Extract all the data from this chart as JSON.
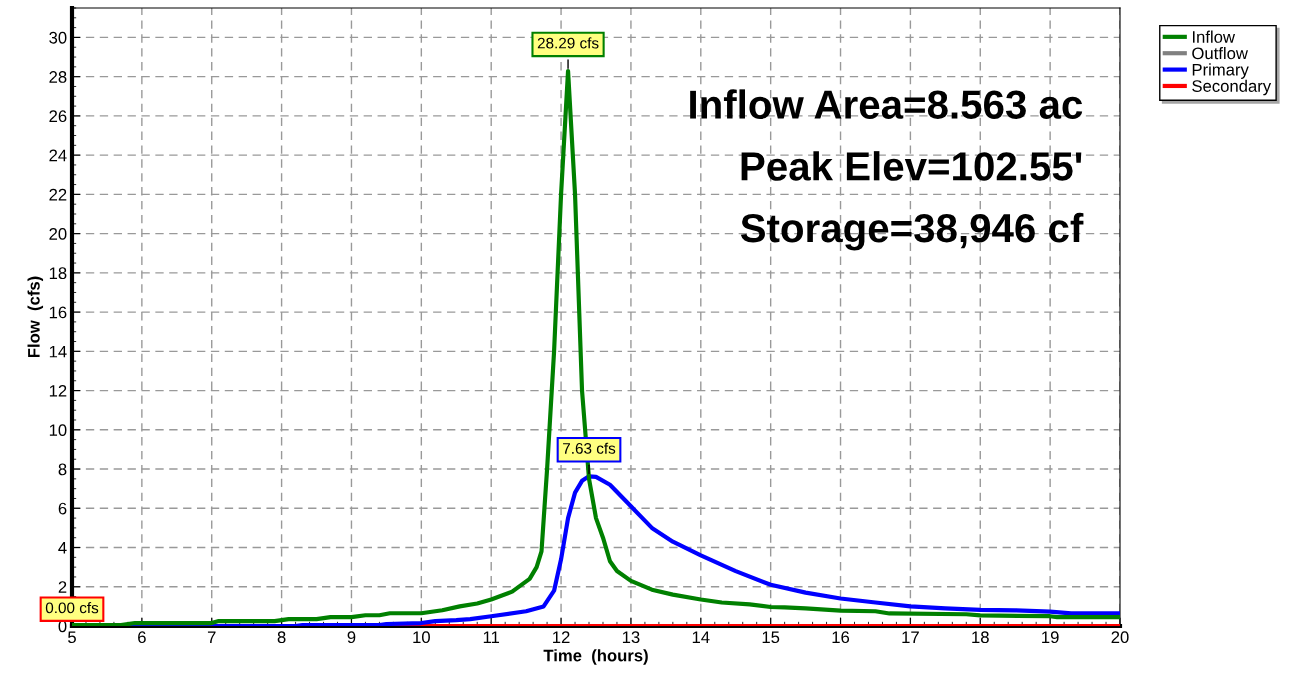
{
  "chart_data": {
    "type": "line",
    "xlabel": "Time  (hours)",
    "ylabel": "Flow  (cfs)",
    "xlim": [
      5,
      20
    ],
    "xticks": [
      5,
      6,
      7,
      8,
      9,
      10,
      11,
      12,
      13,
      14,
      15,
      16,
      17,
      18,
      19,
      20
    ],
    "ylim": [
      0,
      31.5
    ],
    "yticks": [
      0,
      2,
      4,
      6,
      8,
      10,
      12,
      14,
      16,
      18,
      20,
      22,
      24,
      26,
      28,
      30
    ],
    "grid": true,
    "legend": "top right",
    "marker": "none",
    "line_style": "solid",
    "series": [
      {
        "name": "Inflow",
        "color": "#008000",
        "x": [
          5,
          5.7,
          5.9,
          7.0,
          7.1,
          7.9,
          8.1,
          8.5,
          8.7,
          9.0,
          9.2,
          9.4,
          9.55,
          10.0,
          10.3,
          10.55,
          10.8,
          11.0,
          11.3,
          11.55,
          11.65,
          11.72,
          11.8,
          11.9,
          12.0,
          12.1,
          12.2,
          12.3,
          12.4,
          12.5,
          12.6,
          12.7,
          12.8,
          13.0,
          13.3,
          13.6,
          14.0,
          14.3,
          14.7,
          15.0,
          15.2,
          15.5,
          16.0,
          16.5,
          16.7,
          17.8,
          18.0,
          19.0,
          19.1,
          20
        ],
        "values": [
          0.05,
          0.05,
          0.15,
          0.15,
          0.25,
          0.25,
          0.35,
          0.35,
          0.45,
          0.45,
          0.55,
          0.55,
          0.65,
          0.65,
          0.8,
          1.0,
          1.15,
          1.35,
          1.75,
          2.4,
          3.0,
          3.8,
          8.0,
          14,
          22,
          28.29,
          22,
          12,
          7.5,
          5.5,
          4.5,
          3.3,
          2.8,
          2.3,
          1.85,
          1.6,
          1.35,
          1.2,
          1.1,
          0.97,
          0.95,
          0.9,
          0.78,
          0.75,
          0.64,
          0.6,
          0.54,
          0.5,
          0.45,
          0.45
        ]
      },
      {
        "name": "Outflow",
        "color": "#808080"
      },
      {
        "name": "Primary",
        "color": "#0000ff",
        "x": [
          5,
          8.2,
          8.3,
          9.4,
          9.5,
          10.0,
          10.2,
          10.5,
          10.7,
          11.0,
          11.5,
          11.75,
          11.9,
          12.0,
          12.1,
          12.2,
          12.3,
          12.4,
          12.5,
          12.7,
          13.0,
          13.3,
          13.6,
          14.0,
          14.5,
          15.0,
          15.5,
          16.0,
          16.5,
          17.0,
          17.5,
          18.0,
          18.5,
          19.0,
          19.3,
          20
        ],
        "values": [
          0.0,
          0.0,
          0.05,
          0.05,
          0.1,
          0.15,
          0.25,
          0.3,
          0.35,
          0.5,
          0.75,
          1.0,
          1.8,
          3.4,
          5.5,
          6.8,
          7.4,
          7.63,
          7.6,
          7.2,
          6.1,
          5.0,
          4.3,
          3.6,
          2.8,
          2.1,
          1.7,
          1.4,
          1.2,
          1.0,
          0.9,
          0.82,
          0.8,
          0.73,
          0.64,
          0.64
        ]
      },
      {
        "name": "Secondary",
        "color": "#ff0000",
        "x": [
          5,
          20
        ],
        "values": [
          0.0,
          0.0
        ]
      }
    ],
    "annotations": [
      {
        "text": "28.29 cfs",
        "x": 12.1,
        "y": 28.29
      },
      {
        "text": "7.63 cfs",
        "x": 12.4,
        "y": 7.63
      },
      {
        "text": "0.00 cfs",
        "x": 5,
        "y": 0.0
      },
      "Inflow Area=8.563 ac",
      "Peak Elev=102.55'",
      "Storage=38,946 cf"
    ]
  }
}
